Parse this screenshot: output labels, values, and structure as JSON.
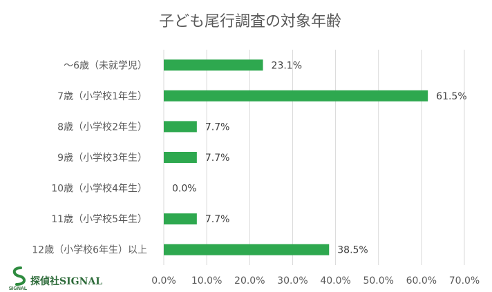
{
  "chart_data": {
    "type": "bar",
    "orientation": "horizontal",
    "title": "子ども尾行調査の対象年齢",
    "categories": [
      "〜6歳（未就学児）",
      "7歳（小学校1年生）",
      "8歳（小学校2年生）",
      "9歳（小学校3年生）",
      "10歳（小学校4年生）",
      "11歳（小学校5年生）",
      "12歳（小学校6年生）以上"
    ],
    "values": [
      23.1,
      61.5,
      7.7,
      7.7,
      0.0,
      7.7,
      38.5
    ],
    "data_labels": [
      "23.1%",
      "61.5%",
      "7.7%",
      "7.7%",
      "0.0%",
      "7.7%",
      "38.5%"
    ],
    "xticks": [
      0,
      10,
      20,
      30,
      40,
      50,
      60,
      70
    ],
    "xtick_labels": [
      "0.0%",
      "10.0%",
      "20.0%",
      "30.0%",
      "40.0%",
      "50.0%",
      "60.0%",
      "70.0%"
    ],
    "xlim": [
      0,
      70
    ],
    "grid": true,
    "colors": {
      "bar": "#2ea84f"
    }
  },
  "logo": {
    "text": "探偵社SIGNAL",
    "mark_text": "SIGNAL"
  }
}
